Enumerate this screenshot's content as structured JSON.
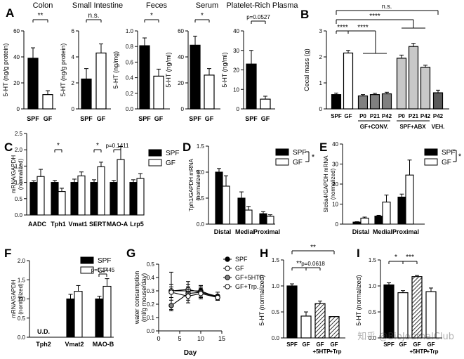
{
  "watermark": "知乎 @BioJournalClub",
  "colors": {
    "black": "#000000",
    "white": "#ffffff",
    "gray": "#808080",
    "lightgray": "#c8c8c8",
    "darkgray": "#5a5a5a"
  },
  "chart_data": [
    {
      "type": "bar",
      "panel": "A",
      "title": "Colon",
      "ylabel": "5-HT (ng/g protein)",
      "ylim": [
        0,
        60
      ],
      "yticks": [
        0,
        20,
        40,
        60
      ],
      "categories": [
        "SPF",
        "GF"
      ],
      "values": [
        39,
        11
      ],
      "errors": [
        8,
        3
      ],
      "fills": [
        "black",
        "white"
      ],
      "annotations": [
        {
          "text": "**",
          "from": 0,
          "to": 1
        }
      ]
    },
    {
      "type": "bar",
      "panel": "",
      "title": "Small Intestine",
      "ylabel": "5-HT (ng/g protein)",
      "ylim": [
        0,
        6
      ],
      "yticks": [
        0,
        2,
        4,
        6
      ],
      "categories": [
        "SPF",
        "GF"
      ],
      "values": [
        2.3,
        4.3
      ],
      "errors": [
        0.8,
        0.7
      ],
      "fills": [
        "black",
        "white"
      ],
      "annotations": [
        {
          "text": "n.s.",
          "from": 0,
          "to": 1
        }
      ]
    },
    {
      "type": "bar",
      "panel": "",
      "title": "Feces",
      "ylabel": "5-HT (ng/mg)",
      "ylim": [
        0,
        1.0
      ],
      "yticks": [
        0,
        0.2,
        0.4,
        0.6,
        0.8,
        1.0
      ],
      "categories": [
        "SPF",
        "GF"
      ],
      "values": [
        0.81,
        0.42
      ],
      "errors": [
        0.1,
        0.09
      ],
      "fills": [
        "black",
        "white"
      ],
      "annotations": [
        {
          "text": "*",
          "from": 0,
          "to": 1
        }
      ]
    },
    {
      "type": "bar",
      "panel": "",
      "title": "Serum",
      "ylabel": "5-HT (ng/ml)",
      "ylim": [
        0,
        60
      ],
      "yticks": [
        0,
        20,
        40,
        60
      ],
      "categories": [
        "SPF",
        "GF"
      ],
      "values": [
        49,
        26
      ],
      "errors": [
        7,
        5
      ],
      "fills": [
        "black",
        "white"
      ],
      "annotations": [
        {
          "text": "*",
          "from": 0,
          "to": 1
        }
      ]
    },
    {
      "type": "bar",
      "panel": "",
      "title": "Platelet-Rich Plasma",
      "ylabel": "5-HT (ng/ml)",
      "ylim": [
        0,
        40
      ],
      "yticks": [
        0,
        10,
        20,
        30,
        40
      ],
      "categories": [
        "SPF",
        "GF"
      ],
      "values": [
        23,
        5
      ],
      "errors": [
        7,
        1.5
      ],
      "fills": [
        "black",
        "white"
      ],
      "annotations": [
        {
          "text": "p=0.0527",
          "from": 0,
          "to": 1
        }
      ]
    },
    {
      "type": "bar",
      "panel": "B",
      "title": "",
      "ylabel": "Cecal mass (g)",
      "ylim": [
        0,
        3
      ],
      "yticks": [
        0,
        1,
        2,
        3
      ],
      "categories": [
        "SPF",
        "GF",
        "P0",
        "P21",
        "P42",
        "P0",
        "P21",
        "P42",
        "P42"
      ],
      "values": [
        0.55,
        2.15,
        0.5,
        0.55,
        0.58,
        1.95,
        2.4,
        1.6,
        0.62
      ],
      "errors": [
        0.06,
        0.1,
        0.05,
        0.05,
        0.06,
        0.12,
        0.12,
        0.08,
        0.1
      ],
      "fills": [
        "black",
        "white",
        "gray",
        "gray",
        "gray",
        "lightgray",
        "lightgray",
        "lightgray",
        "darkgray"
      ],
      "groups": [
        "GF+CONV.",
        "SPF+ABX",
        "VEH."
      ],
      "annotations": [
        {
          "text": "n.s.",
          "from": 0,
          "to": 8
        },
        {
          "text": "****",
          "from": 0,
          "to": 6
        },
        {
          "text": "****",
          "from": 0,
          "to": 1
        },
        {
          "text": "****",
          "from": 1,
          "to": 3
        }
      ]
    },
    {
      "type": "bar",
      "panel": "C",
      "title": "",
      "ylabel": "mRNA/GAPDH (normalized)",
      "ylim": [
        0,
        2.5
      ],
      "yticks": [
        0,
        0.5,
        1.0,
        1.5,
        2.0,
        2.5
      ],
      "categories": [
        "AADC",
        "Tph1",
        "Vmat1",
        "SERT",
        "MAO-A",
        "Lrp5"
      ],
      "series": [
        {
          "name": "SPF",
          "values": [
            1.0,
            1.0,
            1.0,
            1.0,
            1.0,
            1.0
          ],
          "errors": [
            0.05,
            0.06,
            0.1,
            0.08,
            0.06,
            0.08
          ]
        },
        {
          "name": "GF",
          "values": [
            1.18,
            0.72,
            1.2,
            1.48,
            1.7,
            1.12
          ],
          "errors": [
            0.22,
            0.1,
            0.12,
            0.14,
            0.4,
            0.15
          ]
        }
      ],
      "legend": [
        "SPF",
        "GF"
      ],
      "annotations": [
        {
          "text": "*",
          "cat": 1
        },
        {
          "text": "*",
          "cat": 3
        },
        {
          "text": "p=0.1411",
          "cat": 4
        }
      ]
    },
    {
      "type": "bar",
      "panel": "D",
      "title": "",
      "ylabel": "Tph1/GAPDH mRNA (normalized)",
      "ylim": [
        0,
        1.5
      ],
      "yticks": [
        0,
        0.5,
        1.0,
        1.5
      ],
      "categories": [
        "Distal",
        "Medial",
        "Proximal"
      ],
      "series": [
        {
          "name": "SPF",
          "values": [
            1.0,
            0.5,
            0.2
          ],
          "errors": [
            0.07,
            0.12,
            0.04
          ]
        },
        {
          "name": "GF",
          "values": [
            0.73,
            0.27,
            0.15
          ],
          "errors": [
            0.2,
            0.07,
            0.03
          ]
        }
      ],
      "legend": [
        "SPF",
        "GF"
      ],
      "annotations": [
        {
          "text": "*"
        }
      ]
    },
    {
      "type": "bar",
      "panel": "E",
      "title": "",
      "ylabel": "Slc6a4/GAPDH mRNA (normalized)",
      "ylim": [
        0,
        40
      ],
      "yticks": [
        0,
        10,
        20,
        30,
        40
      ],
      "categories": [
        "Distal",
        "Medial",
        "Proximal"
      ],
      "series": [
        {
          "name": "SPF",
          "values": [
            1.0,
            4.0,
            13.5
          ],
          "errors": [
            0.2,
            0.4,
            1.5
          ]
        },
        {
          "name": "GF",
          "values": [
            3.0,
            11.0,
            24.5
          ],
          "errors": [
            0.5,
            3.5,
            7.5
          ]
        }
      ],
      "legend": [
        "SPF",
        "GF"
      ],
      "annotations": [
        {
          "text": "*"
        }
      ]
    },
    {
      "type": "bar",
      "panel": "F",
      "title": "",
      "ylabel": "mRNA/GAPDH (normalized)",
      "ylim": [
        0,
        2.0
      ],
      "yticks": [
        0,
        0.5,
        1.0,
        1.5,
        2.0
      ],
      "categories": [
        "Tph2",
        "Vmat2",
        "MAO-B"
      ],
      "series": [
        {
          "name": "SPF",
          "values": [
            null,
            1.0,
            1.0
          ],
          "errors": [
            0,
            0.12,
            0.07
          ]
        },
        {
          "name": "GF",
          "values": [
            null,
            1.2,
            1.33
          ],
          "errors": [
            0,
            0.15,
            0.2
          ]
        }
      ],
      "legend": [
        "SPF",
        "GF"
      ],
      "notes": [
        {
          "text": "U.D.",
          "cat": 0
        }
      ],
      "annotations": [
        {
          "text": "p=0.1445",
          "cat": 2
        }
      ]
    },
    {
      "type": "line",
      "panel": "G",
      "title": "",
      "xlabel": "Day",
      "ylabel": "water consumption (ml/g mouse/day)",
      "xlim": [
        0,
        15
      ],
      "ylim": [
        0,
        0.5
      ],
      "xticks": [
        0,
        5,
        10,
        15
      ],
      "yticks": [
        0,
        0.1,
        0.2,
        0.3,
        0.4,
        0.5
      ],
      "x": [
        3,
        7,
        10,
        14
      ],
      "series": [
        {
          "name": "SPF",
          "values": [
            0.3,
            0.3,
            0.3,
            0.25
          ],
          "errors": [
            0.05,
            0.05,
            0.04,
            0.02
          ],
          "marker": "black"
        },
        {
          "name": "GF",
          "values": [
            0.3,
            0.31,
            0.29,
            0.26
          ],
          "errors": [
            0.14,
            0.06,
            0.05,
            0.03
          ],
          "marker": "white"
        },
        {
          "name": "GF+5HTP",
          "values": [
            0.19,
            0.28,
            0.29,
            0.25
          ],
          "errors": [
            0.04,
            0.05,
            0.04,
            0.02
          ],
          "marker": "gray"
        },
        {
          "name": "GF+Trp.",
          "values": [
            0.29,
            0.26,
            0.28,
            0.25
          ],
          "errors": [
            0.04,
            0.05,
            0.04,
            0.02
          ],
          "marker": "white"
        }
      ]
    },
    {
      "type": "bar",
      "panel": "H",
      "title": "",
      "ylabel": "5-HT (normalized)",
      "ylim": [
        0,
        1.5
      ],
      "yticks": [
        0,
        0.5,
        1.0,
        1.5
      ],
      "categories": [
        "SPF",
        "GF",
        "GF +5HTP",
        "GF +Trp"
      ],
      "values": [
        1.0,
        0.42,
        0.66,
        0.41
      ],
      "errors": [
        0.04,
        0.08,
        0.05,
        0.0
      ],
      "fills": [
        "black",
        "white",
        "hatch",
        "hatch"
      ],
      "annotations": [
        {
          "text": "**",
          "from": 0,
          "to": 3
        },
        {
          "text": "**",
          "from": 0,
          "to": 1
        },
        {
          "text": "p=0.0618",
          "from": 1,
          "to": 2
        }
      ]
    },
    {
      "type": "bar",
      "panel": "I",
      "title": "",
      "ylabel": "5-HT (normalized)",
      "ylim": [
        0,
        1.5
      ],
      "yticks": [
        0,
        0.5,
        1.0,
        1.5
      ],
      "categories": [
        "SPF",
        "GF",
        "GF +5HTP",
        "GF +Trp"
      ],
      "values": [
        1.02,
        0.87,
        1.18,
        0.89
      ],
      "errors": [
        0.04,
        0.04,
        0.02,
        0.07
      ],
      "fills": [
        "black",
        "white",
        "hatch",
        "white"
      ],
      "annotations": [
        {
          "text": "*",
          "from": 0,
          "to": 1
        },
        {
          "text": "***",
          "from": 1,
          "to": 2
        }
      ]
    }
  ]
}
